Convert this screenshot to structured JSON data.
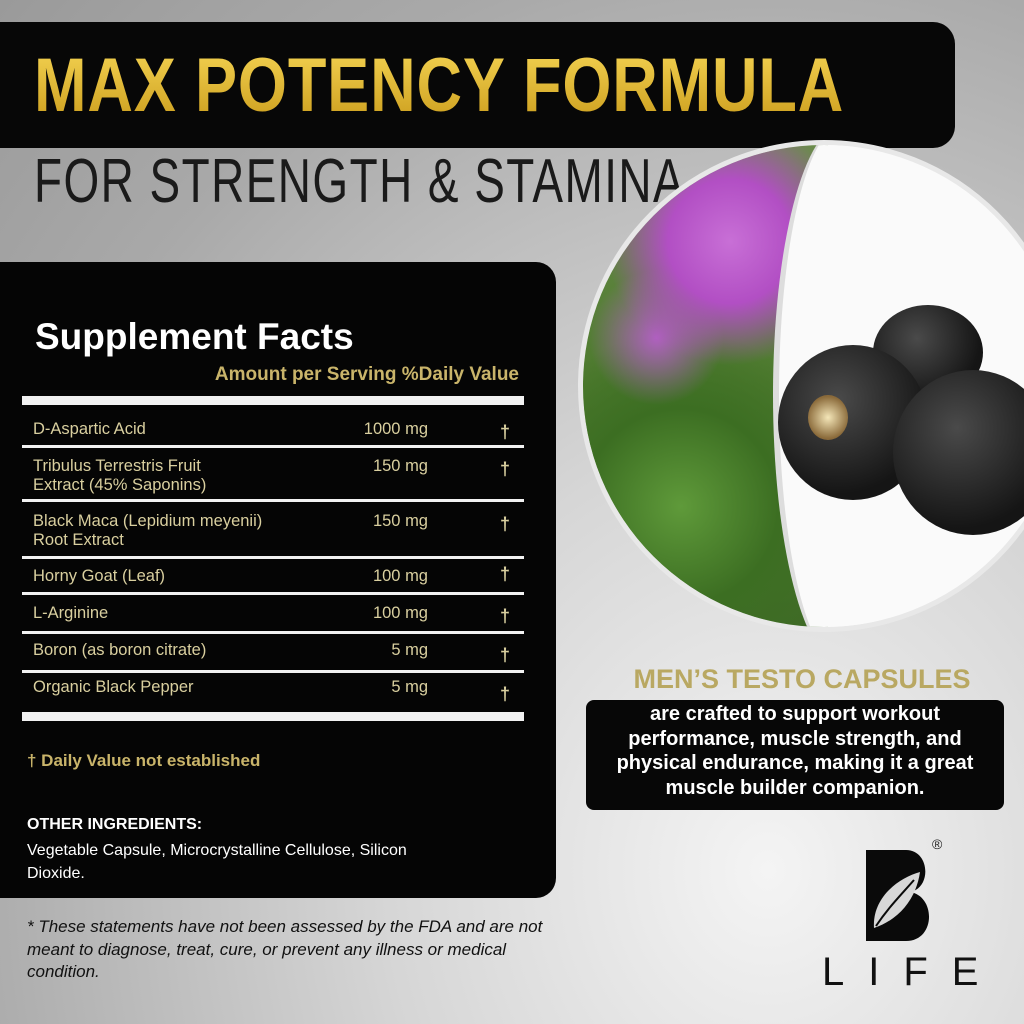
{
  "header": {
    "title": "MAX POTENCY FORMULA",
    "subtitle": "FOR STRENGTH & STAMINA"
  },
  "supplement_facts": {
    "title": "Supplement Facts",
    "column_header": "Amount per Serving %Daily Value",
    "rows": [
      {
        "name": "D-Aspartic Acid",
        "amount": "1000 mg",
        "dv": "†"
      },
      {
        "name": "Tribulus Terrestris Fruit Extract (45% Saponins)",
        "amount": "150 mg",
        "dv": "†"
      },
      {
        "name": "Black Maca (Lepidium meyenii) Root Extract",
        "amount": "150 mg",
        "dv": "†"
      },
      {
        "name": "Horny Goat (Leaf)",
        "amount": "100 mg",
        "dv": "†"
      },
      {
        "name": "L-Arginine",
        "amount": "100 mg",
        "dv": "†"
      },
      {
        "name": "Boron (as boron citrate)",
        "amount": "5 mg",
        "dv": "†"
      },
      {
        "name": "Organic Black Pepper",
        "amount": "5 mg",
        "dv": "†"
      }
    ],
    "dv_note": "† Daily Value not established",
    "other_ingredients_title": "OTHER INGREDIENTS:",
    "other_ingredients": "Vegetable Capsule, Microcrystalline Cellulose, Silicon Dioxide."
  },
  "disclaimer": "* These statements have not been assessed by the FDA and are not meant to diagnose, treat, cure, or prevent any illness or medical condition.",
  "promo": {
    "title": "MEN’S TESTO CAPSULES",
    "description": "are crafted to support workout performance, muscle strength, and physical endurance, making it a great muscle builder companion."
  },
  "brand": {
    "logo_letter": "B",
    "name": "LIFE",
    "registered": "®"
  },
  "colors": {
    "gold": "#e2b92b",
    "table_text": "#d9cf9f",
    "accent_gold": "#c9b46a",
    "black": "#070707"
  }
}
